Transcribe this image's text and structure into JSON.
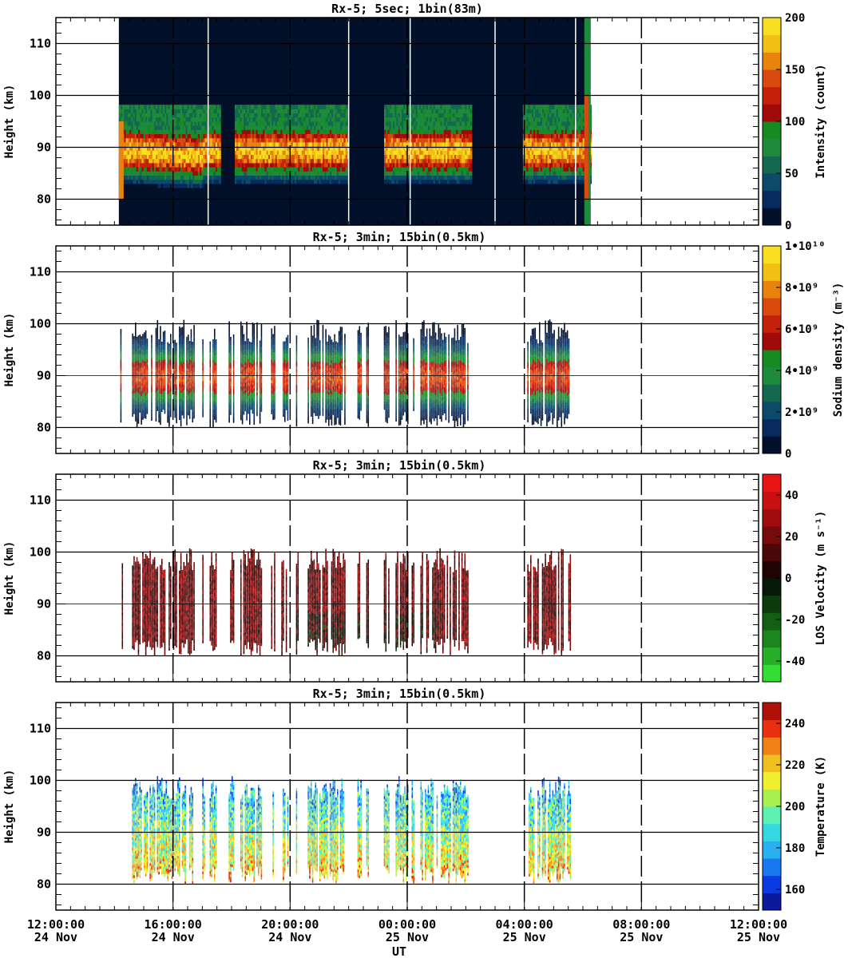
{
  "chart_data": [
    {
      "type": "heatmap",
      "title": "Rx-5;  5sec; 1bin(83m)",
      "ylabel": "Height (km)",
      "ylim": [
        75,
        115
      ],
      "yticks": [
        "80",
        "90",
        "100",
        "110"
      ],
      "colorbar": {
        "label": "Intensity (count)",
        "ticks": [
          "0",
          "50",
          "100",
          "150",
          "200"
        ],
        "range": [
          0,
          200
        ],
        "colors": [
          "#02102a",
          "#082a5c",
          "#0b4a6a",
          "#13684f",
          "#1d8a3c",
          "#188a22",
          "#a00a0a",
          "#c5200a",
          "#d84a0e",
          "#e8830e",
          "#f0c015",
          "#f8e020"
        ]
      }
    },
    {
      "type": "heatmap",
      "title": "Rx-5; 3min; 15bin(0.5km)",
      "ylabel": "Height (km)",
      "ylim": [
        75,
        115
      ],
      "yticks": [
        "80",
        "90",
        "100",
        "110"
      ],
      "colorbar": {
        "label": "Sodium density (m⁻³)",
        "ticks": [
          "0",
          "2•10⁹",
          "4•10⁹",
          "6•10⁹",
          "8•10⁹",
          "1•10¹⁰"
        ],
        "range": [
          0,
          10000000000
        ],
        "colors": [
          "#02102a",
          "#082a5c",
          "#0b4a6a",
          "#13684f",
          "#1d8a3c",
          "#188a22",
          "#a00a0a",
          "#c5200a",
          "#d84a0e",
          "#e8830e",
          "#f0c015",
          "#f8e020"
        ]
      }
    },
    {
      "type": "heatmap",
      "title": "Rx-5; 3min; 15bin(0.5km)",
      "ylabel": "Height (km)",
      "ylim": [
        75,
        115
      ],
      "yticks": [
        "80",
        "90",
        "100",
        "110"
      ],
      "colorbar": {
        "label": "LOS Velocity (m s⁻¹)",
        "ticks": [
          "-40",
          "-20",
          "0",
          "20",
          "40"
        ],
        "range": [
          -50,
          50
        ],
        "colors": [
          "#33dd33",
          "#27b027",
          "#1b861b",
          "#135f13",
          "#0b3b0b",
          "#061806",
          "#200404",
          "#4a0808",
          "#760b0b",
          "#a00d0d",
          "#c81010",
          "#e81515"
        ]
      }
    },
    {
      "type": "heatmap",
      "title": "Rx-5; 3min; 15bin(0.5km)",
      "ylabel": "Height (km)",
      "ylim": [
        75,
        115
      ],
      "yticks": [
        "80",
        "90",
        "100",
        "110"
      ],
      "xlabel": "UT",
      "xticks": [
        {
          "time": "12:00:00",
          "date": "24 Nov"
        },
        {
          "time": "16:00:00",
          "date": "24 Nov"
        },
        {
          "time": "20:00:00",
          "date": "24 Nov"
        },
        {
          "time": "00:00:00",
          "date": "25 Nov"
        },
        {
          "time": "04:00:00",
          "date": "25 Nov"
        },
        {
          "time": "08:00:00",
          "date": "25 Nov"
        },
        {
          "time": "12:00:00",
          "date": "25 Nov"
        }
      ],
      "colorbar": {
        "label": "Temperature (K)",
        "ticks": [
          "160",
          "180",
          "200",
          "220",
          "240"
        ],
        "range": [
          150,
          250
        ],
        "colors": [
          "#0a1a9a",
          "#0b3be0",
          "#1a78f0",
          "#29b0f0",
          "#35d8e0",
          "#5ef0b0",
          "#a8f050",
          "#f0f030",
          "#f0c020",
          "#f08018",
          "#e83010",
          "#b01008"
        ]
      }
    }
  ]
}
